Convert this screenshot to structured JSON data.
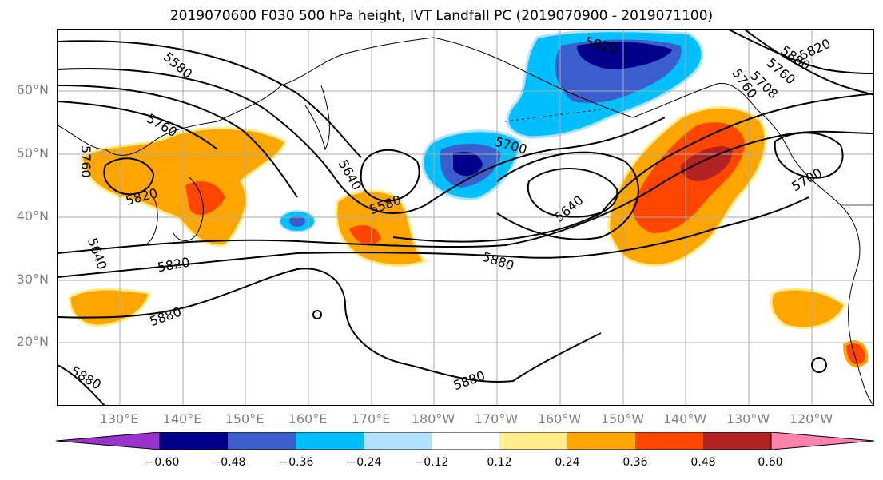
{
  "title": "2019070600 F030 500 hPa height, IVT Landfall PC (2019070900 - 2019071100)",
  "lat_labels": [
    "60°N",
    "50°N",
    "40°N",
    "30°N",
    "20°N"
  ],
  "lon_labels": [
    "130°E",
    "140°E",
    "150°E",
    "160°E",
    "170°E",
    "180°W",
    "170°W",
    "160°W",
    "150°W",
    "140°W",
    "130°W",
    "120°W"
  ],
  "contour_labels": [
    "5580",
    "5820",
    "5760",
    "5640",
    "5700",
    "5880",
    "5760",
    "5820",
    "5640",
    "5760",
    "5820",
    "5880",
    "5880",
    "5880",
    "5820",
    "5880",
    "5580",
    "5700",
    "5640",
    "5708",
    "5760"
  ],
  "colorbar": {
    "colors": [
      "#9a32cd",
      "#00008b",
      "#3a5fcd",
      "#00bfff",
      "#b0e2ff",
      "#ffffff",
      "#ffec8b",
      "#ffa500",
      "#ff4500",
      "#b22222",
      "#ff82ab"
    ],
    "ticks": [
      "−0.60",
      "−0.48",
      "−0.36",
      "−0.24",
      "−0.12",
      "0.12",
      "0.24",
      "0.36",
      "0.48",
      "0.60"
    ]
  }
}
